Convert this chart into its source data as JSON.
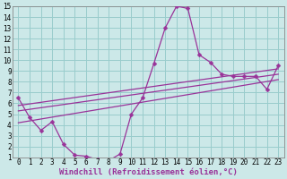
{
  "bg_color": "#cce8e8",
  "line_color": "#993399",
  "grid_color": "#99cccc",
  "xlabel": "Windchill (Refroidissement éolien,°C)",
  "xlim": [
    -0.5,
    23.5
  ],
  "ylim": [
    1,
    15
  ],
  "xticks": [
    0,
    1,
    2,
    3,
    4,
    5,
    6,
    7,
    8,
    9,
    10,
    11,
    12,
    13,
    14,
    15,
    16,
    17,
    18,
    19,
    20,
    21,
    22,
    23
  ],
  "yticks": [
    1,
    2,
    3,
    4,
    5,
    6,
    7,
    8,
    9,
    10,
    11,
    12,
    13,
    14,
    15
  ],
  "curve1_x": [
    0,
    1,
    2,
    3,
    4,
    5,
    6,
    7,
    8,
    9,
    10,
    11,
    12,
    13,
    14,
    15,
    16,
    17,
    18,
    19,
    20,
    21,
    22,
    23
  ],
  "curve1_y": [
    6.5,
    4.7,
    3.5,
    4.3,
    2.2,
    1.2,
    1.1,
    0.8,
    0.7,
    1.3,
    5.0,
    6.5,
    9.7,
    13.0,
    15.0,
    14.8,
    10.5,
    9.8,
    8.7,
    8.5,
    8.5,
    8.5,
    7.3,
    9.5
  ],
  "line1_x": [
    0,
    23
  ],
  "line1_y": [
    5.8,
    9.2
  ],
  "line2_x": [
    0,
    23
  ],
  "line2_y": [
    5.3,
    8.7
  ],
  "line3_x": [
    0,
    23
  ],
  "line3_y": [
    4.2,
    8.2
  ],
  "marker": "D",
  "markersize": 2.5,
  "tick_fontsize": 5.5,
  "xlabel_fontsize": 6.5
}
